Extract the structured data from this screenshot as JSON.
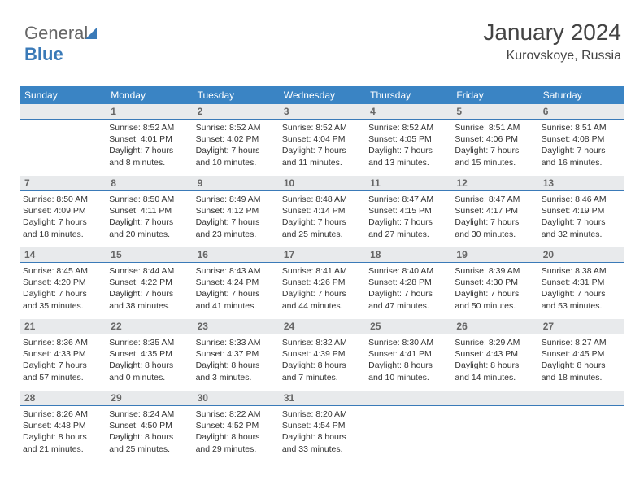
{
  "logo": {
    "text1": "General",
    "text2": "Blue"
  },
  "header": {
    "month": "January 2024",
    "location": "Kurovskoye, Russia"
  },
  "colors": {
    "header_bg": "#3a84c4",
    "header_fg": "#ffffff",
    "daynum_bg": "#e8eaec",
    "daynum_fg": "#666666",
    "rule": "#3a7ab8",
    "text": "#333333"
  },
  "weekdays": [
    "Sunday",
    "Monday",
    "Tuesday",
    "Wednesday",
    "Thursday",
    "Friday",
    "Saturday"
  ],
  "weeks": [
    [
      {
        "blank": true
      },
      {
        "n": "1",
        "sunrise": "8:52 AM",
        "sunset": "4:01 PM",
        "daylight": "7 hours and 8 minutes."
      },
      {
        "n": "2",
        "sunrise": "8:52 AM",
        "sunset": "4:02 PM",
        "daylight": "7 hours and 10 minutes."
      },
      {
        "n": "3",
        "sunrise": "8:52 AM",
        "sunset": "4:04 PM",
        "daylight": "7 hours and 11 minutes."
      },
      {
        "n": "4",
        "sunrise": "8:52 AM",
        "sunset": "4:05 PM",
        "daylight": "7 hours and 13 minutes."
      },
      {
        "n": "5",
        "sunrise": "8:51 AM",
        "sunset": "4:06 PM",
        "daylight": "7 hours and 15 minutes."
      },
      {
        "n": "6",
        "sunrise": "8:51 AM",
        "sunset": "4:08 PM",
        "daylight": "7 hours and 16 minutes."
      }
    ],
    [
      {
        "n": "7",
        "sunrise": "8:50 AM",
        "sunset": "4:09 PM",
        "daylight": "7 hours and 18 minutes."
      },
      {
        "n": "8",
        "sunrise": "8:50 AM",
        "sunset": "4:11 PM",
        "daylight": "7 hours and 20 minutes."
      },
      {
        "n": "9",
        "sunrise": "8:49 AM",
        "sunset": "4:12 PM",
        "daylight": "7 hours and 23 minutes."
      },
      {
        "n": "10",
        "sunrise": "8:48 AM",
        "sunset": "4:14 PM",
        "daylight": "7 hours and 25 minutes."
      },
      {
        "n": "11",
        "sunrise": "8:47 AM",
        "sunset": "4:15 PM",
        "daylight": "7 hours and 27 minutes."
      },
      {
        "n": "12",
        "sunrise": "8:47 AM",
        "sunset": "4:17 PM",
        "daylight": "7 hours and 30 minutes."
      },
      {
        "n": "13",
        "sunrise": "8:46 AM",
        "sunset": "4:19 PM",
        "daylight": "7 hours and 32 minutes."
      }
    ],
    [
      {
        "n": "14",
        "sunrise": "8:45 AM",
        "sunset": "4:20 PM",
        "daylight": "7 hours and 35 minutes."
      },
      {
        "n": "15",
        "sunrise": "8:44 AM",
        "sunset": "4:22 PM",
        "daylight": "7 hours and 38 minutes."
      },
      {
        "n": "16",
        "sunrise": "8:43 AM",
        "sunset": "4:24 PM",
        "daylight": "7 hours and 41 minutes."
      },
      {
        "n": "17",
        "sunrise": "8:41 AM",
        "sunset": "4:26 PM",
        "daylight": "7 hours and 44 minutes."
      },
      {
        "n": "18",
        "sunrise": "8:40 AM",
        "sunset": "4:28 PM",
        "daylight": "7 hours and 47 minutes."
      },
      {
        "n": "19",
        "sunrise": "8:39 AM",
        "sunset": "4:30 PM",
        "daylight": "7 hours and 50 minutes."
      },
      {
        "n": "20",
        "sunrise": "8:38 AM",
        "sunset": "4:31 PM",
        "daylight": "7 hours and 53 minutes."
      }
    ],
    [
      {
        "n": "21",
        "sunrise": "8:36 AM",
        "sunset": "4:33 PM",
        "daylight": "7 hours and 57 minutes."
      },
      {
        "n": "22",
        "sunrise": "8:35 AM",
        "sunset": "4:35 PM",
        "daylight": "8 hours and 0 minutes."
      },
      {
        "n": "23",
        "sunrise": "8:33 AM",
        "sunset": "4:37 PM",
        "daylight": "8 hours and 3 minutes."
      },
      {
        "n": "24",
        "sunrise": "8:32 AM",
        "sunset": "4:39 PM",
        "daylight": "8 hours and 7 minutes."
      },
      {
        "n": "25",
        "sunrise": "8:30 AM",
        "sunset": "4:41 PM",
        "daylight": "8 hours and 10 minutes."
      },
      {
        "n": "26",
        "sunrise": "8:29 AM",
        "sunset": "4:43 PM",
        "daylight": "8 hours and 14 minutes."
      },
      {
        "n": "27",
        "sunrise": "8:27 AM",
        "sunset": "4:45 PM",
        "daylight": "8 hours and 18 minutes."
      }
    ],
    [
      {
        "n": "28",
        "sunrise": "8:26 AM",
        "sunset": "4:48 PM",
        "daylight": "8 hours and 21 minutes."
      },
      {
        "n": "29",
        "sunrise": "8:24 AM",
        "sunset": "4:50 PM",
        "daylight": "8 hours and 25 minutes."
      },
      {
        "n": "30",
        "sunrise": "8:22 AM",
        "sunset": "4:52 PM",
        "daylight": "8 hours and 29 minutes."
      },
      {
        "n": "31",
        "sunrise": "8:20 AM",
        "sunset": "4:54 PM",
        "daylight": "8 hours and 33 minutes."
      },
      {
        "blank": true
      },
      {
        "blank": true
      },
      {
        "blank": true
      }
    ]
  ],
  "labels": {
    "sunrise": "Sunrise:",
    "sunset": "Sunset:",
    "daylight": "Daylight:"
  }
}
